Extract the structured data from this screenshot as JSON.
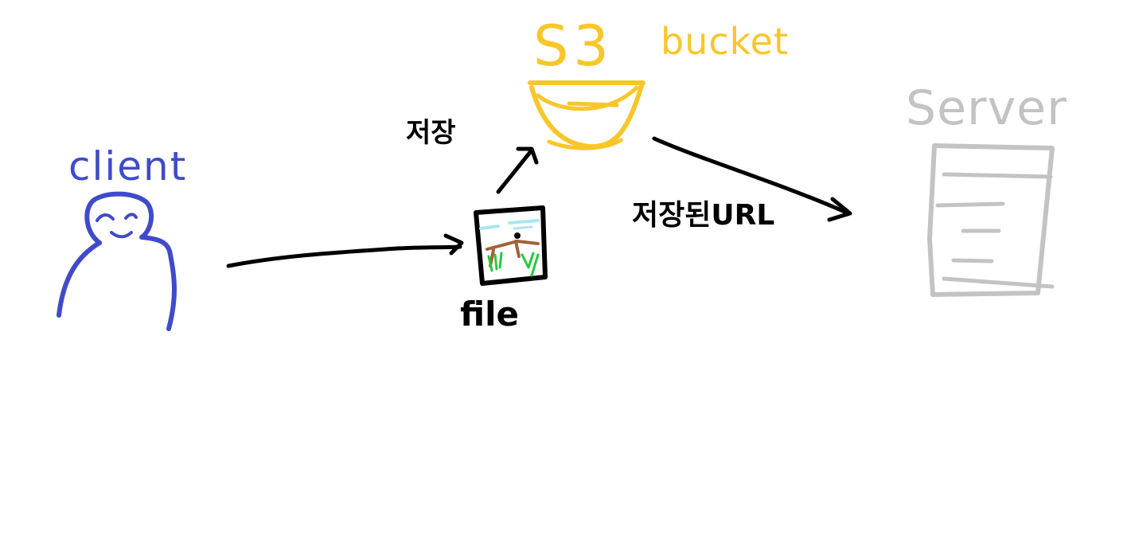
{
  "labels": {
    "client": "client",
    "s3": "S3",
    "bucket": "bucket",
    "server": "Server",
    "file": "file",
    "save": "저장",
    "saved_url": "저장된URL"
  },
  "colors": {
    "client": "#3f4bc9",
    "s3": "#f9c62a",
    "server": "#c3c3c3",
    "arrow": "#000000",
    "sky": "#a9e6ef",
    "branch": "#a0623a",
    "grass": "#28c840"
  }
}
